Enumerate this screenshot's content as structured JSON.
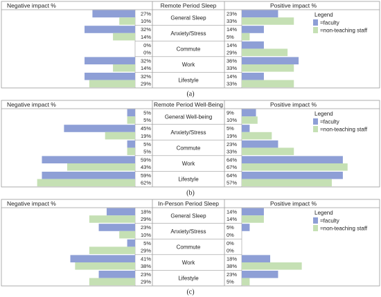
{
  "colors": {
    "faculty": "#8e9fd6",
    "staff": "#c5e0b4",
    "grid": "#9a9a9a"
  },
  "chart_data": [
    {
      "type": "bar",
      "caption": "(a)",
      "left_header": "Negative impact %",
      "center_header": "Remote Period Sleep",
      "right_header": "Positive impact %",
      "legend_title": "Legend",
      "legend": [
        "=faculty",
        "=non-teaching staff"
      ],
      "categories": [
        "General Sleep",
        "Anxiety/Stress",
        "Commute",
        "Work",
        "Lifestyle"
      ],
      "series": [
        {
          "negative": [
            27,
            32,
            0,
            32,
            32
          ],
          "positive": [
            23,
            14,
            14,
            36,
            14
          ]
        },
        {
          "negative": [
            10,
            14,
            0,
            14,
            29
          ],
          "positive": [
            33,
            5,
            29,
            33,
            33
          ]
        }
      ]
    },
    {
      "type": "bar",
      "caption": "(b)",
      "left_header": "Negative impact %",
      "center_header": "Remote Period Well-Being",
      "right_header": "Positive impact %",
      "legend_title": "Legend",
      "legend": [
        "=faculty",
        "=non-teaching staff"
      ],
      "categories": [
        "General Well-being",
        "Anxiety/Stress",
        "Commute",
        "Work",
        "Lifestyle"
      ],
      "series": [
        {
          "negative": [
            5,
            45,
            5,
            59,
            59
          ],
          "positive": [
            9,
            5,
            23,
            64,
            64
          ]
        },
        {
          "negative": [
            5,
            19,
            5,
            43,
            62
          ],
          "positive": [
            10,
            19,
            33,
            67,
            57
          ]
        }
      ]
    },
    {
      "type": "bar",
      "caption": "(c)",
      "left_header": "Negative impact %",
      "center_header": "In-Person Period Sleep",
      "right_header": "Positive impact %",
      "legend_title": "Legend",
      "legend": [
        "=faculty",
        "=non-teaching staff"
      ],
      "categories": [
        "General Sleep",
        "Anxiety/Stress",
        "Commute",
        "Work",
        "Lifestyle"
      ],
      "series": [
        {
          "negative": [
            18,
            23,
            5,
            41,
            23
          ],
          "positive": [
            14,
            5,
            0,
            18,
            23
          ]
        },
        {
          "negative": [
            29,
            10,
            29,
            38,
            29
          ],
          "positive": [
            14,
            0,
            0,
            38,
            5
          ]
        }
      ]
    }
  ]
}
